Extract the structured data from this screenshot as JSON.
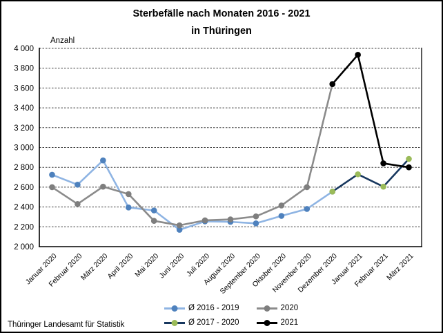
{
  "header": {
    "title_line1": "Sterbefälle nach Monaten 2016 - 2021",
    "title_line2": "in Thüringen"
  },
  "footer": {
    "source": "Thüringer Landesamt für Statistik"
  },
  "chart_data": {
    "type": "line",
    "title": "Sterbefälle nach Monaten 2016 - 2021 in Thüringen",
    "y_axis_label": "Anzahl",
    "xlabel": "",
    "ylabel": "Anzahl",
    "ylim": [
      2000,
      4000
    ],
    "y_tick_step": 200,
    "y_tick_format": "space-thousands",
    "grid": "horizontal-dashed",
    "legend_position": "bottom-center",
    "categories": [
      "Januar 2020",
      "Februar 2020",
      "März 2020",
      "April 2020",
      "Mai 2020",
      "Juni 2020",
      "Juli 2020",
      "August 2020",
      "September 2020",
      "Oktober 2020",
      "November 2020",
      "Dezember 2020",
      "Januar 2021",
      "Februar 2021",
      "März 2021"
    ],
    "series": [
      {
        "name": "Ø 2016 - 2019",
        "line_color": "#8EB4E3",
        "marker_color": "#4E81BD",
        "start_index": 0,
        "values": [
          2725,
          2625,
          2870,
          2395,
          2365,
          2170,
          2255,
          2250,
          2235,
          2310,
          2380,
          2555
        ]
      },
      {
        "name": "2020",
        "line_color": "#8B8B8B",
        "marker_color": "#7E7E7E",
        "start_index": 0,
        "values": [
          2600,
          2430,
          2605,
          2530,
          2260,
          2215,
          2265,
          2275,
          2305,
          2415,
          2600,
          3640
        ]
      },
      {
        "name": "Ø 2017 - 2020",
        "line_color": "#17375E",
        "marker_color": "#9BBB59",
        "start_index": 11,
        "values": [
          2555,
          2730,
          2605,
          2885
        ]
      },
      {
        "name": "2021",
        "line_color": "#000000",
        "marker_color": "#000000",
        "start_index": 11,
        "values": [
          3640,
          3935,
          2840,
          2800
        ]
      }
    ]
  }
}
